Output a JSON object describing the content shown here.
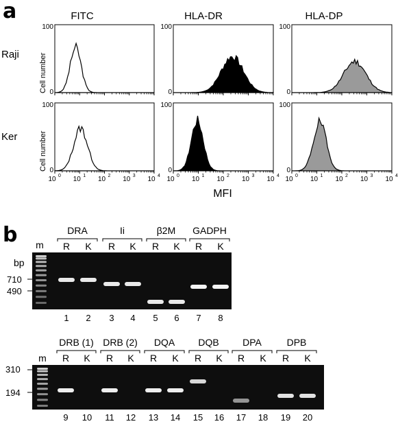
{
  "panel_a": {
    "letter": "a",
    "columns": [
      "FITC",
      "HLA-DR",
      "HLA-DP"
    ],
    "rows": [
      "Raji",
      "Ker"
    ],
    "y_axis_label": "Cell number",
    "y_tick": "100",
    "y_tick_zero": "0",
    "x_axis_label": "MFI",
    "x_ticks": [
      "10",
      "10",
      "10",
      "10",
      "10"
    ],
    "x_tick_exponents": [
      "0",
      "1",
      "2",
      "3",
      "4"
    ],
    "fill_colors": {
      "FITC": "#ffffff",
      "HLA-DR": "#000000",
      "HLA-DP": "#9a9a9a"
    }
  },
  "panel_b": {
    "letter": "b",
    "marker_label": "m",
    "gel1": {
      "bp_label": "bp",
      "size_labels": [
        "710",
        "490"
      ],
      "genes": [
        "DRA",
        "Ii",
        "β2M",
        "GADPH"
      ],
      "sublabels": [
        "R",
        "K"
      ],
      "lanes": [
        "1",
        "2",
        "3",
        "4",
        "5",
        "6",
        "7",
        "8"
      ]
    },
    "gel2": {
      "size_labels": [
        "310",
        "194"
      ],
      "genes": [
        "DRB (1)",
        "DRB (2)",
        "DQA",
        "DQB",
        "DPA",
        "DPB"
      ],
      "sublabels": [
        "R",
        "K"
      ],
      "lanes": [
        "9",
        "10",
        "11",
        "12",
        "13",
        "14",
        "15",
        "16",
        "17",
        "18",
        "19",
        "20"
      ]
    }
  }
}
